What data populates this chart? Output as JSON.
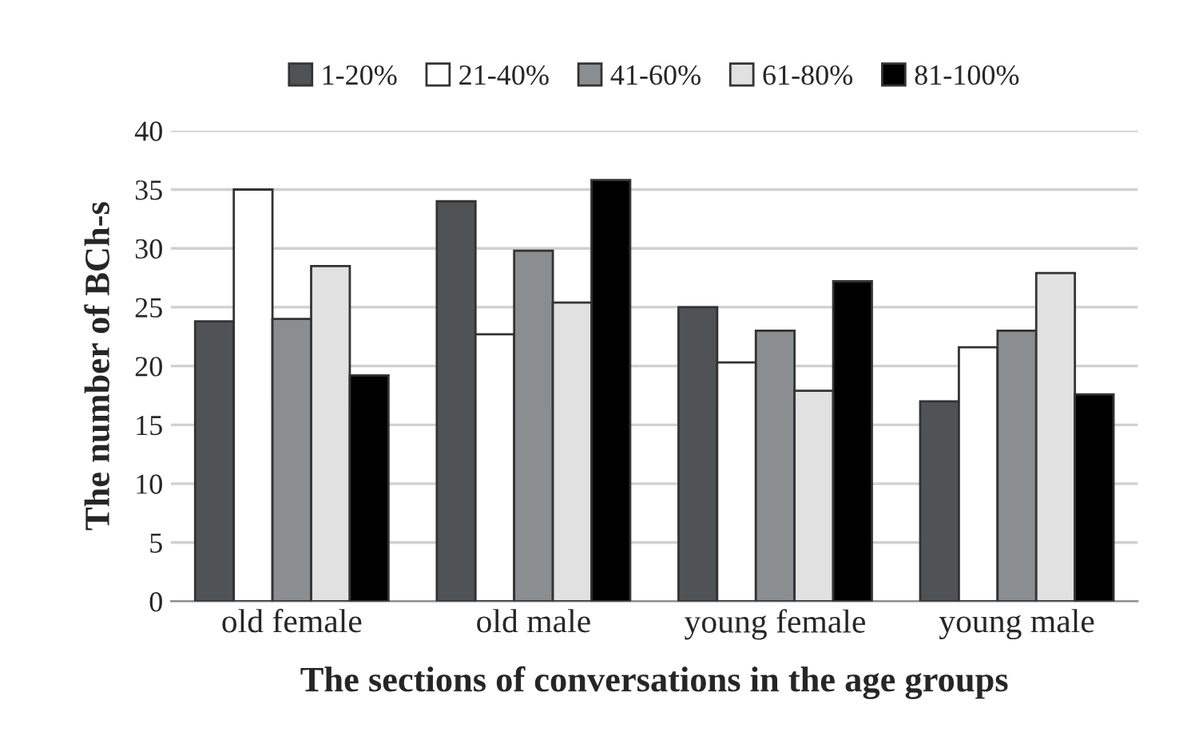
{
  "chart_data": {
    "type": "bar",
    "xlabel": "The sections of conversations in the age groups",
    "ylabel": "The number of BCh-s",
    "categories": [
      "old female",
      "old male",
      "young female",
      "young male"
    ],
    "series": [
      {
        "name": "1-20%",
        "color": "#4f5356",
        "values": [
          23.8,
          34.0,
          25.0,
          17.0
        ]
      },
      {
        "name": "21-40%",
        "color": "#ffffff",
        "values": [
          35.0,
          22.7,
          20.3,
          21.6
        ]
      },
      {
        "name": "41-60%",
        "color": "#8a8e91",
        "values": [
          24.0,
          29.8,
          23.0,
          23.0
        ]
      },
      {
        "name": "61-80%",
        "color": "#e0e1e0",
        "values": [
          28.5,
          25.4,
          17.9,
          27.9
        ]
      },
      {
        "name": "81-100%",
        "color": "#000000",
        "values": [
          19.2,
          35.8,
          27.2,
          17.6
        ]
      }
    ],
    "ylim": [
      0,
      40
    ],
    "yticks": [
      0,
      5,
      10,
      15,
      20,
      25,
      30,
      35,
      40
    ],
    "grid": "y",
    "legend": "top"
  }
}
